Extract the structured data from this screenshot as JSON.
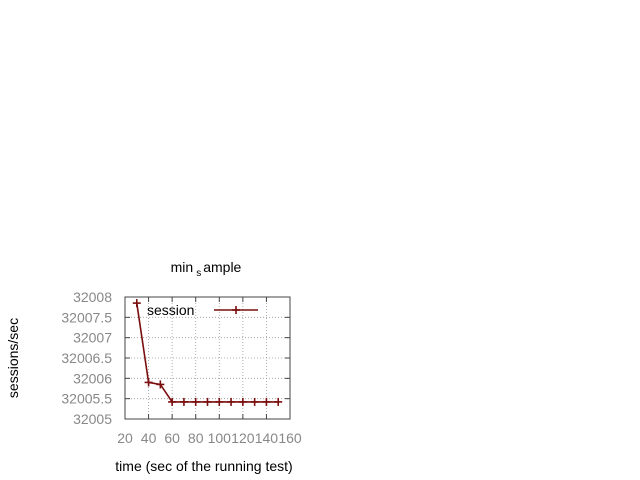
{
  "chart_data": {
    "type": "line",
    "title_main": "min",
    "title_sub": "s",
    "title_rest": "ample",
    "xlabel": "time (sec of the running test)",
    "ylabel": "sessions/sec",
    "xlim": [
      20,
      160
    ],
    "ylim": [
      32005,
      32008
    ],
    "x_ticks": [
      20,
      40,
      60,
      80,
      100,
      120,
      140,
      160
    ],
    "x_tick_labels": [
      "20",
      "40",
      "60",
      "80",
      "100",
      "120",
      "140",
      "160"
    ],
    "y_ticks": [
      32005,
      32005.5,
      32006,
      32006.5,
      32007,
      32007.5,
      32008
    ],
    "y_tick_labels": [
      "32005",
      "32005.5",
      "32006",
      "32006.5",
      "32007",
      "32007.5",
      "32008"
    ],
    "grid": true,
    "legend_position": "top-right",
    "series": [
      {
        "name": "session",
        "color": "#7a0e0e",
        "marker": "plus",
        "x": [
          30,
          40,
          50,
          60,
          70,
          80,
          90,
          100,
          110,
          120,
          130,
          140,
          150
        ],
        "y": [
          32007.85,
          32005.9,
          32005.85,
          32005.42,
          32005.42,
          32005.42,
          32005.42,
          32005.42,
          32005.42,
          32005.42,
          32005.42,
          32005.42,
          32005.42
        ]
      }
    ]
  }
}
